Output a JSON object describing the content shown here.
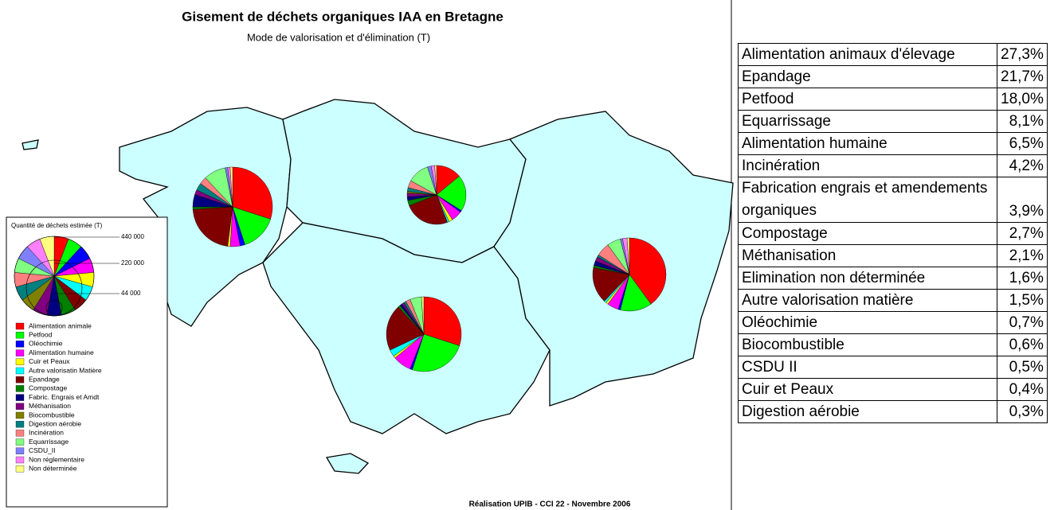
{
  "title": "Gisement de déchets organiques IAA en Bretagne",
  "subtitle": "Mode de valorisation et d'élimination (T)",
  "credit": "Réalisation UPIB - CCI 22 - Novembre 2006",
  "legend": {
    "title": "Quantité de déchets estimée (T)",
    "sizes": [
      "440 000",
      "220 000",
      "44 000"
    ],
    "items": [
      {
        "label": "Alimentation animale",
        "color": "#ff0000"
      },
      {
        "label": "Petfood",
        "color": "#00ff00"
      },
      {
        "label": "Oléochimie",
        "color": "#0000ff"
      },
      {
        "label": "Alimentation humaine",
        "color": "#ff00ff"
      },
      {
        "label": "Cuir et Peaux",
        "color": "#ffff00"
      },
      {
        "label": "Autre valorisatin Matière",
        "color": "#00ffff"
      },
      {
        "label": "Epandage",
        "color": "#800000"
      },
      {
        "label": "Compostage",
        "color": "#008000"
      },
      {
        "label": "Fabric. Engrais et Amdt",
        "color": "#000080"
      },
      {
        "label": "Méthanisation",
        "color": "#800080"
      },
      {
        "label": "Biocombustible",
        "color": "#808000"
      },
      {
        "label": "Digestion aérobie",
        "color": "#008080"
      },
      {
        "label": "Incinération",
        "color": "#ff8080"
      },
      {
        "label": "Equarrissage",
        "color": "#80ff80"
      },
      {
        "label": "CSDU_II",
        "color": "#8080ff"
      },
      {
        "label": "Non réglementaire",
        "color": "#ff80ff"
      },
      {
        "label": "Non déterminée",
        "color": "#ffff80"
      }
    ]
  },
  "pies": [
    {
      "values": [
        30,
        15,
        2,
        4,
        1,
        0,
        22,
        1,
        5,
        2,
        0,
        3,
        3,
        9,
        1,
        1,
        1
      ]
    },
    {
      "values": [
        14,
        20,
        1,
        6,
        2,
        1,
        25,
        3,
        2,
        2,
        1,
        2,
        4,
        12,
        2,
        2,
        1
      ]
    },
    {
      "values": [
        30,
        25,
        1,
        8,
        1,
        3,
        20,
        1,
        1,
        1,
        0,
        1,
        2,
        5,
        0,
        0,
        1
      ]
    },
    {
      "values": [
        40,
        14,
        1,
        5,
        1,
        1,
        16,
        1,
        2,
        2,
        0,
        1,
        6,
        6,
        1,
        2,
        1
      ]
    }
  ],
  "table": {
    "rows": [
      [
        "Alimentation animaux d'élevage",
        "27,3%"
      ],
      [
        "Epandage",
        "21,7%"
      ],
      [
        "Petfood",
        "18,0%"
      ],
      [
        "Equarrissage",
        "8,1%"
      ],
      [
        "Alimentation humaine",
        "6,5%"
      ],
      [
        "Incinération",
        "4,2%"
      ],
      [
        "Fabrication engrais et amendements organiques",
        "3,9%"
      ],
      [
        "Compostage",
        "2,7%"
      ],
      [
        "Méthanisation",
        "2,1%"
      ],
      [
        "Elimination non déterminée",
        "1,6%"
      ],
      [
        "Autre valorisation matière",
        "1,5%"
      ],
      [
        "Oléochimie",
        "0,7%"
      ],
      [
        "Biocombustible",
        "0,6%"
      ],
      [
        "CSDU II",
        "0,5%"
      ],
      [
        "Cuir et Peaux",
        "0,4%"
      ],
      [
        "Digestion aérobie",
        "0,3%"
      ]
    ]
  }
}
